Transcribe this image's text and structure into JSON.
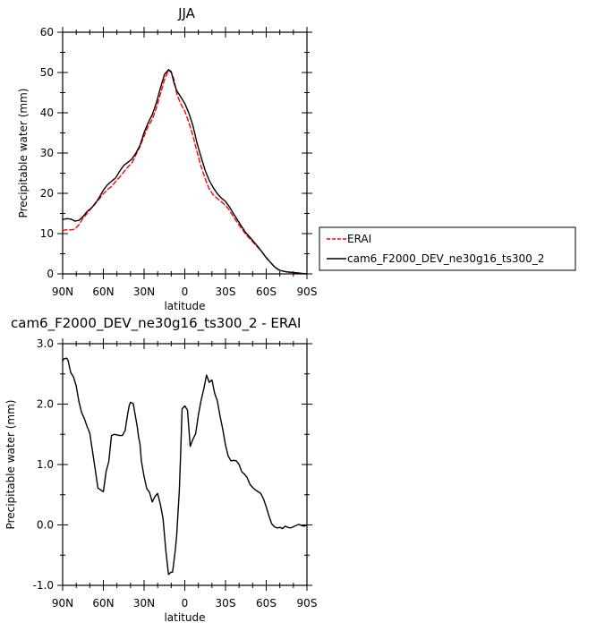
{
  "chart_data": [
    {
      "type": "line",
      "title": "JJA",
      "xlabel": "latitude",
      "ylabel": "Precipitable water (mm)",
      "xlim": [
        90,
        -90
      ],
      "ylim": [
        0,
        60
      ],
      "xticks": [
        90,
        60,
        30,
        0,
        -30,
        -60,
        -90
      ],
      "xtick_labels": [
        "90N",
        "60N",
        "30N",
        "0",
        "30S",
        "60S",
        "90S"
      ],
      "yticks": [
        0,
        10,
        20,
        30,
        40,
        50,
        60
      ],
      "ytick_labels": [
        "0",
        "10",
        "20",
        "30",
        "40",
        "50",
        "60"
      ],
      "legend_position": "right",
      "series": [
        {
          "name": "ERAI",
          "color": "#ff0000",
          "dash": true,
          "x": [
            90,
            87,
            84,
            81,
            78,
            75,
            72,
            69,
            66,
            63,
            60,
            57,
            54,
            51,
            48,
            45,
            42,
            39,
            36,
            33,
            30,
            27,
            24,
            21,
            18,
            15,
            12,
            10,
            8,
            6,
            4,
            2,
            0,
            -3,
            -6,
            -9,
            -12,
            -15,
            -18,
            -21,
            -24,
            -27,
            -30,
            -33,
            -36,
            -39,
            -42,
            -45,
            -48,
            -51,
            -54,
            -57,
            -60,
            -63,
            -66,
            -69,
            -72,
            -75,
            -78,
            -81,
            -84,
            -87,
            -90
          ],
          "y": [
            10.7,
            11.0,
            10.9,
            11.1,
            12.2,
            13.8,
            15.0,
            16.3,
            17.6,
            18.6,
            19.9,
            20.9,
            21.7,
            22.9,
            24.0,
            25.3,
            26.5,
            27.5,
            29.6,
            31.6,
            34.2,
            36.6,
            38.3,
            41.1,
            44.6,
            48.2,
            50.5,
            50.0,
            48.3,
            44.9,
            43.0,
            41.6,
            40.4,
            37.6,
            34.3,
            30.3,
            26.7,
            23.6,
            21.1,
            19.6,
            18.7,
            17.9,
            17.0,
            15.8,
            14.1,
            12.6,
            11.2,
            9.8,
            8.7,
            7.6,
            6.5,
            5.4,
            4.1,
            2.9,
            1.8,
            1.1,
            0.7,
            0.5,
            0.4,
            0.3,
            0.2,
            0.1,
            0.0
          ]
        },
        {
          "name": "cam6_F2000_DEV_ne30g16_ts300_2",
          "color": "#000000",
          "dash": false,
          "x": [
            90,
            87,
            84,
            81,
            78,
            75,
            72,
            69,
            66,
            63,
            60,
            57,
            54,
            51,
            48,
            45,
            42,
            39,
            36,
            33,
            30,
            27,
            24,
            21,
            18,
            15,
            12,
            10,
            8,
            6,
            4,
            2,
            0,
            -3,
            -6,
            -9,
            -12,
            -15,
            -18,
            -21,
            -24,
            -27,
            -30,
            -33,
            -36,
            -39,
            -42,
            -45,
            -48,
            -51,
            -54,
            -57,
            -60,
            -63,
            -66,
            -69,
            -72,
            -75,
            -78,
            -81,
            -84,
            -87,
            -90
          ],
          "y": [
            13.5,
            13.7,
            13.6,
            13.1,
            13.3,
            14.2,
            15.5,
            16.3,
            17.4,
            19.0,
            20.8,
            22.1,
            23.0,
            23.8,
            25.5,
            26.9,
            27.7,
            28.5,
            30.0,
            31.9,
            35.1,
            37.5,
            39.5,
            42.4,
            46.1,
            49.5,
            50.7,
            50.2,
            47.5,
            45.5,
            44.5,
            43.4,
            42.3,
            39.9,
            36.8,
            32.5,
            29.0,
            25.7,
            23.2,
            21.4,
            19.9,
            18.8,
            18.0,
            16.6,
            14.9,
            13.3,
            11.7,
            10.2,
            9.1,
            7.9,
            6.7,
            5.4,
            4.0,
            2.9,
            1.8,
            1.0,
            0.7,
            0.5,
            0.4,
            0.3,
            0.2,
            0.1,
            0.0
          ]
        }
      ]
    },
    {
      "type": "line",
      "title": "cam6_F2000_DEV_ne30g16_ts300_2 - ERAI",
      "xlabel": "latitude",
      "ylabel": "Precipitable water (mm)",
      "xlim": [
        90,
        -90
      ],
      "ylim": [
        -1.0,
        3.0
      ],
      "xticks": [
        90,
        60,
        30,
        0,
        -30,
        -60,
        -90
      ],
      "xtick_labels": [
        "90N",
        "60N",
        "30N",
        "0",
        "30S",
        "60S",
        "90S"
      ],
      "yticks": [
        -1.0,
        0.0,
        1.0,
        2.0,
        3.0
      ],
      "ytick_labels": [
        "-1.0",
        "0.0",
        "1.0",
        "2.0",
        "3.0"
      ],
      "series": [
        {
          "color": "#000000",
          "x": [
            90,
            89,
            87,
            86,
            84,
            82,
            80,
            78,
            76,
            74,
            72,
            70,
            68,
            66,
            64,
            62,
            60,
            58,
            56,
            54,
            52,
            50,
            48,
            46,
            44,
            42,
            41,
            40,
            38,
            36,
            35,
            34,
            33,
            32,
            30,
            28,
            26,
            24,
            22,
            20,
            18,
            16,
            14,
            12,
            10,
            9,
            7,
            6,
            5,
            4,
            3,
            2,
            0,
            -2,
            -4,
            -6,
            -8,
            -10,
            -12,
            -14,
            -16,
            -18,
            -20,
            -22,
            -24,
            -26,
            -28,
            -30,
            -32,
            -34,
            -36,
            -38,
            -40,
            -42,
            -44,
            -46,
            -48,
            -50,
            -52,
            -54,
            -56,
            -58,
            -60,
            -62,
            -64,
            -66,
            -68,
            -70,
            -72,
            -74,
            -76,
            -78,
            -80,
            -82,
            -84,
            -86,
            -88,
            -90
          ],
          "y": [
            2.72,
            2.75,
            2.76,
            2.72,
            2.52,
            2.45,
            2.3,
            2.04,
            1.86,
            1.76,
            1.63,
            1.52,
            1.22,
            0.92,
            0.61,
            0.58,
            0.55,
            0.88,
            1.05,
            1.48,
            1.5,
            1.49,
            1.48,
            1.48,
            1.56,
            1.85,
            1.97,
            2.03,
            2.01,
            1.75,
            1.62,
            1.45,
            1.34,
            1.06,
            0.8,
            0.6,
            0.54,
            0.38,
            0.47,
            0.52,
            0.34,
            0.1,
            -0.42,
            -0.82,
            -0.78,
            -0.78,
            -0.42,
            -0.18,
            0.2,
            0.58,
            1.22,
            1.92,
            1.97,
            1.9,
            1.3,
            1.42,
            1.51,
            1.82,
            2.06,
            2.25,
            2.48,
            2.36,
            2.4,
            2.18,
            2.05,
            1.8,
            1.58,
            1.32,
            1.14,
            1.06,
            1.07,
            1.06,
            1.0,
            0.88,
            0.84,
            0.78,
            0.67,
            0.62,
            0.58,
            0.55,
            0.52,
            0.43,
            0.3,
            0.15,
            0.02,
            -0.03,
            -0.05,
            -0.04,
            -0.06,
            -0.02,
            -0.04,
            -0.05,
            -0.03,
            -0.01,
            0.01,
            -0.01,
            -0.02,
            0.0
          ]
        }
      ]
    }
  ]
}
